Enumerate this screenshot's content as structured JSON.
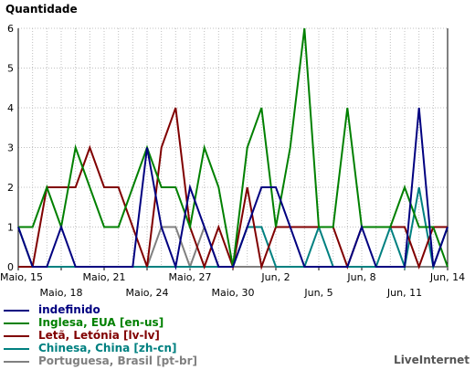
{
  "chart_data": {
    "type": "line",
    "ylabel": "Quantidade",
    "ylim": [
      0,
      6
    ],
    "yticks": [
      0,
      1,
      2,
      3,
      4,
      5,
      6
    ],
    "grid": true,
    "legend_position": "bottom-left",
    "x": [
      "Maio, 15",
      "Maio, 16",
      "Maio, 17",
      "Maio, 18",
      "Maio, 19",
      "Maio, 20",
      "Maio, 21",
      "Maio, 22",
      "Maio, 23",
      "Maio, 24",
      "Maio, 25",
      "Maio, 26",
      "Maio, 27",
      "Maio, 28",
      "Maio, 29",
      "Maio, 30",
      "Maio, 31",
      "Jun, 1",
      "Jun, 2",
      "Jun, 3",
      "Jun, 4",
      "Jun, 5",
      "Jun, 6",
      "Jun, 7",
      "Jun, 8",
      "Jun, 9",
      "Jun, 10",
      "Jun, 11",
      "Jun, 12",
      "Jun, 13",
      "Jun, 14"
    ],
    "tick_labels": [
      {
        "label": "Maio, 15",
        "index": 0,
        "row": 0
      },
      {
        "label": "Maio, 18",
        "index": 3,
        "row": 1
      },
      {
        "label": "Maio, 21",
        "index": 6,
        "row": 0
      },
      {
        "label": "Maio, 24",
        "index": 9,
        "row": 1
      },
      {
        "label": "Maio, 27",
        "index": 12,
        "row": 0
      },
      {
        "label": "Maio, 30",
        "index": 15,
        "row": 1
      },
      {
        "label": "Jun, 2",
        "index": 18,
        "row": 0
      },
      {
        "label": "Jun, 5",
        "index": 21,
        "row": 1
      },
      {
        "label": "Jun, 8",
        "index": 24,
        "row": 0
      },
      {
        "label": "Jun, 11",
        "index": 27,
        "row": 1
      },
      {
        "label": "Jun, 14",
        "index": 30,
        "row": 0
      }
    ],
    "series": [
      {
        "name": "indefinido",
        "color": "#000080",
        "values": [
          1,
          0,
          0,
          1,
          0,
          0,
          0,
          0,
          0,
          3,
          1,
          0,
          2,
          1,
          0,
          0,
          1,
          2,
          2,
          1,
          0,
          0,
          0,
          0,
          1,
          0,
          0,
          0,
          4,
          0,
          1
        ]
      },
      {
        "name": "Inglesa, EUA [en-us]",
        "color": "#008000",
        "values": [
          1,
          1,
          2,
          1,
          3,
          2,
          1,
          1,
          2,
          3,
          2,
          2,
          1,
          3,
          2,
          0,
          3,
          4,
          1,
          3,
          6,
          1,
          1,
          4,
          1,
          1,
          1,
          2,
          1,
          1,
          0
        ]
      },
      {
        "name": "Letã, Letónia [lv-lv]",
        "color": "#800000",
        "values": [
          0,
          0,
          2,
          2,
          2,
          3,
          2,
          2,
          1,
          0,
          3,
          4,
          1,
          0,
          1,
          0,
          2,
          0,
          1,
          1,
          1,
          1,
          1,
          0,
          1,
          1,
          1,
          1,
          0,
          1,
          1
        ]
      },
      {
        "name": "Chinesa, China [zh-cn]",
        "color": "#008080",
        "values": [
          1,
          0,
          0,
          0,
          0,
          0,
          0,
          0,
          0,
          0,
          0,
          0,
          0,
          0,
          0,
          0,
          1,
          1,
          0,
          0,
          0,
          1,
          0,
          0,
          0,
          0,
          1,
          0,
          2,
          0,
          1
        ]
      },
      {
        "name": "Portuguesa, Brasil [pt-br]",
        "color": "#808080",
        "values": [
          0,
          0,
          0,
          0,
          0,
          0,
          0,
          0,
          0,
          0,
          1,
          1,
          0,
          1,
          0,
          0,
          0,
          0,
          0,
          0,
          0,
          0,
          0,
          0,
          0,
          0,
          0,
          0,
          0,
          0,
          0
        ]
      }
    ]
  },
  "credit": "LiveInternet"
}
